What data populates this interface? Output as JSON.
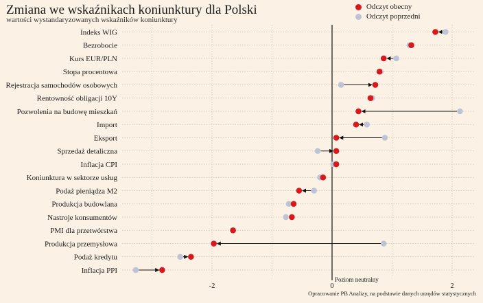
{
  "title": "Zmiana we wskaźnikach koniunktury dla Polski",
  "subtitle": "wartości wystandaryzowanych wskaźników koniunktury",
  "footnote": "Opracowanie PB Analizy, na podstawie danych urzędów statystycznych",
  "neutral_label": "Poziom neutralny",
  "colors": {
    "current": "#d7191c",
    "previous": "#bcc4d6",
    "background": "#fbf1e4",
    "grid": "#c9bfb2"
  },
  "chart_data": {
    "type": "dot",
    "title": "Zmiana we wskaźnikach koniunktury dla Polski",
    "subtitle": "wartości wystandaryzowanych wskaźników koniunktury",
    "legend": [
      "Odczyt obecny",
      "Odczyt poprzedni"
    ],
    "legend_position": "top-right",
    "xlim": [
      -3.5,
      2.6
    ],
    "x_ticks": [
      -2,
      0,
      2
    ],
    "grid": true,
    "series": [
      {
        "name": "Odczyt obecny",
        "key": "current"
      },
      {
        "name": "Odczyt poprzedni",
        "key": "previous"
      }
    ],
    "categories": [
      "Indeks WIG",
      "Bezrobocie",
      "Kurs EUR/PLN",
      "Stopa procentowa",
      "Rejestracja samochodów osobowych",
      "Rentowność obligacji 10Y",
      "Pozwolenia na budowę mieszkań",
      "Import",
      "Eksport",
      "Sprzedaż detaliczna",
      "Inflacja CPI",
      "Koniunktura w sektorze usług",
      "Podaż pieniądza M2",
      "Produkcja budowlana",
      "Nastroje konsumentów",
      "PMI dla przetwórstwa",
      "Produkcja przemysłowa",
      "Podaż kredytu",
      "Inflacja PPI"
    ],
    "current": [
      1.72,
      1.32,
      0.86,
      0.79,
      0.72,
      0.64,
      0.44,
      0.4,
      0.07,
      0.07,
      0.07,
      -0.15,
      -0.55,
      -0.64,
      -0.67,
      -1.65,
      -1.97,
      -2.35,
      -2.83
    ],
    "previous": [
      1.89,
      1.29,
      1.07,
      0.81,
      0.15,
      0.67,
      2.13,
      0.58,
      0.88,
      -0.24,
      0.02,
      -0.2,
      -0.3,
      -0.72,
      -0.77,
      -1.65,
      0.86,
      -2.53,
      -3.27
    ]
  }
}
